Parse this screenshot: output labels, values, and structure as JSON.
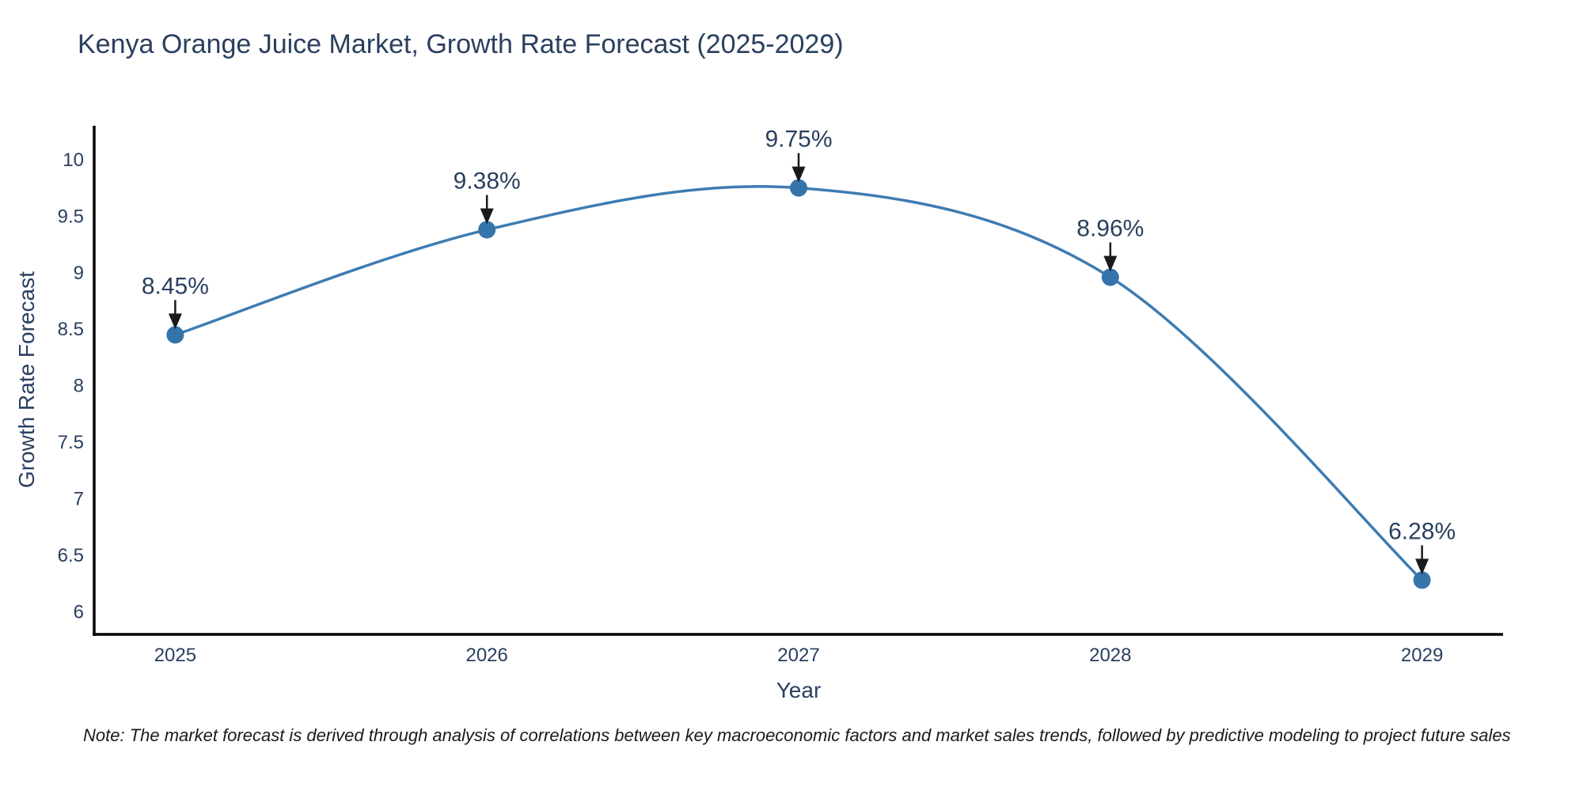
{
  "note": "Note: The market forecast is derived through analysis of correlations between key macroeconomic factors and market sales trends, followed by predictive modeling to project future sales",
  "chart_data": {
    "type": "line",
    "title": "Kenya Orange Juice Market, Growth Rate Forecast (2025-2029)",
    "xlabel": "Year",
    "ylabel": "Growth Rate Forecast",
    "x": [
      2025,
      2026,
      2027,
      2028,
      2029
    ],
    "series": [
      {
        "name": "Growth Rate Forecast",
        "values": [
          8.45,
          9.38,
          9.75,
          8.96,
          6.28
        ]
      }
    ],
    "annotations": [
      {
        "x": 2025,
        "y": 8.45,
        "text": "8.45%"
      },
      {
        "x": 2026,
        "y": 9.38,
        "text": "9.38%"
      },
      {
        "x": 2027,
        "y": 9.75,
        "text": "9.75%"
      },
      {
        "x": 2028,
        "y": 8.96,
        "text": "8.96%"
      },
      {
        "x": 2029,
        "y": 6.28,
        "text": "6.28%"
      }
    ],
    "xtick_values": [
      2025,
      2026,
      2027,
      2028,
      2029
    ],
    "xtick_labels": [
      "2025",
      "2026",
      "2027",
      "2028",
      "2029"
    ],
    "ytick_values": [
      6,
      6.5,
      7,
      7.5,
      8,
      8.5,
      9,
      9.5,
      10
    ],
    "ytick_labels": [
      "6",
      "6.5",
      "7",
      "7.5",
      "8",
      "8.5",
      "9",
      "9.5",
      "10"
    ],
    "xlim": [
      2024.74,
      2029.26
    ],
    "ylim": [
      5.8,
      10.3
    ],
    "grid": false,
    "legend": "none",
    "line_shape": "spline",
    "colors": {
      "line": "#3e7cb2",
      "marker": "#3574ab",
      "axis": "#000000",
      "tick_text": "#2a3f5f",
      "annotation_text": "#2a3f5f",
      "arrow": "#1a1a1a",
      "background": "#ffffff"
    }
  }
}
